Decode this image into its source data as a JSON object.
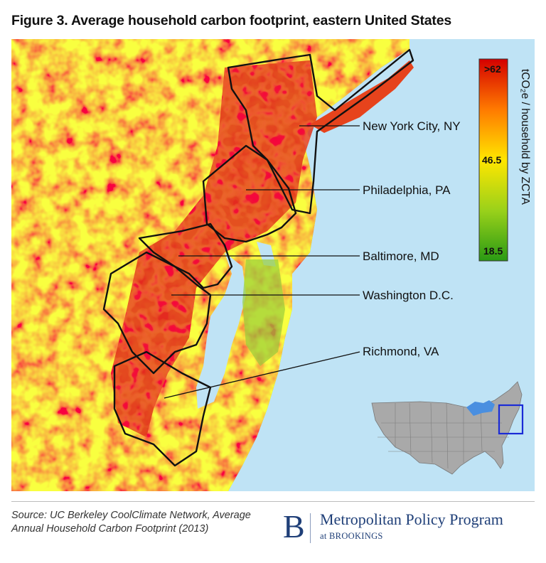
{
  "figure": {
    "title": "Figure 3. Average household carbon footprint, eastern United States"
  },
  "map": {
    "cities": [
      {
        "name": "New York City, NY"
      },
      {
        "name": "Philadelphia, PA"
      },
      {
        "name": "Baltimore, MD"
      },
      {
        "name": "Washington D.C."
      },
      {
        "name": "Richmond, VA"
      }
    ],
    "legend": {
      "title": "tCO₂e / household by ZCTA",
      "max_label": ">62",
      "mid_label": "46.5",
      "min_label": "18.5",
      "colors": [
        "#d40000",
        "#ff7a00",
        "#ffe600",
        "#9ad11a",
        "#2a9a14"
      ]
    },
    "colors": {
      "water": "#bfe3f5",
      "land_high": "#e52d12",
      "land_mid": "#f2d21a",
      "land_low": "#5fb92c",
      "inset_land": "#a9a9a9",
      "inset_box": "#1a2bd6"
    }
  },
  "source": {
    "text": "Source: UC Berkeley CoolClimate Network, Average Annual Household Carbon Footprint (2013)"
  },
  "logo": {
    "letter": "B",
    "name": "Metropolitan Policy Program",
    "sub": "at BROOKINGS"
  }
}
